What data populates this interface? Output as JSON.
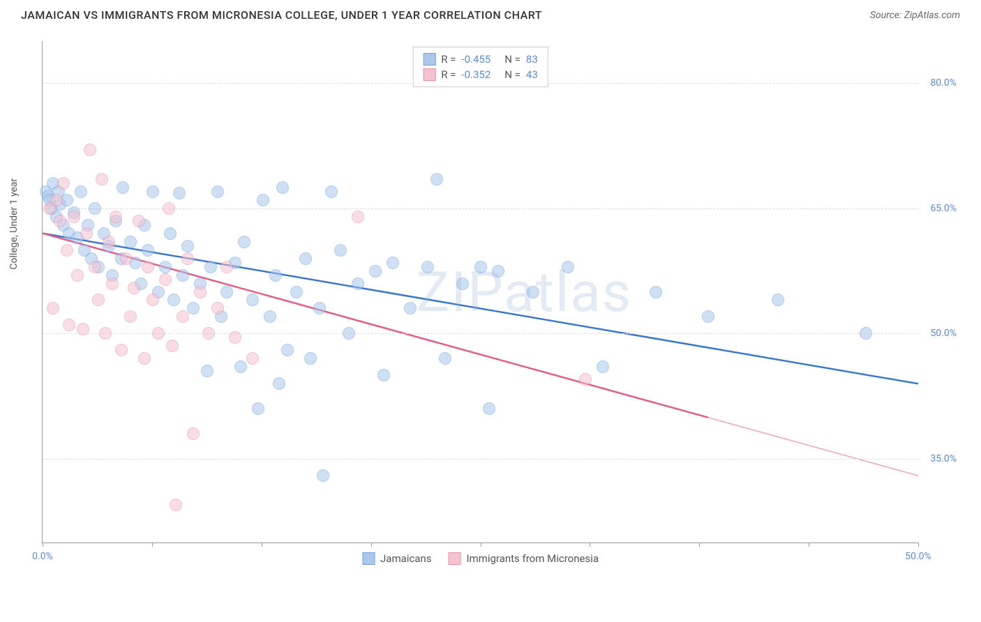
{
  "header": {
    "title": "JAMAICAN VS IMMIGRANTS FROM MICRONESIA COLLEGE, UNDER 1 YEAR CORRELATION CHART",
    "source": "Source: ZipAtlas.com"
  },
  "watermark": "ZIPatlas",
  "chart": {
    "type": "scatter",
    "y_axis_label": "College, Under 1 year",
    "background_color": "#ffffff",
    "grid_color": "#dddddd",
    "axis_color": "#999999",
    "tick_label_color": "#5b8dd6",
    "xlim": [
      0,
      50
    ],
    "ylim": [
      25,
      85
    ],
    "x_ticks": [
      0,
      6.25,
      12.5,
      18.75,
      25,
      31.25,
      37.5,
      43.75,
      50
    ],
    "x_tick_labels": {
      "0": "0.0%",
      "50": "50.0%"
    },
    "y_ticks": [
      35,
      50,
      65,
      80
    ],
    "y_tick_labels": {
      "35": "35.0%",
      "50": "50.0%",
      "65": "65.0%",
      "80": "80.0%"
    },
    "point_radius": 9,
    "point_opacity": 0.55,
    "point_stroke_width": 1.5,
    "line_width": 2.5,
    "series": [
      {
        "name": "Jamaicans",
        "color_fill": "#a9c8ec",
        "color_stroke": "#6fa3dd",
        "line_color": "#3b78c9",
        "R": "-0.455",
        "N": "83",
        "trend": {
          "x1": 0,
          "y1": 62,
          "x2": 50,
          "y2": 44,
          "dashed_from_x": null
        },
        "points": [
          [
            0.2,
            67
          ],
          [
            0.3,
            66.5
          ],
          [
            0.4,
            66
          ],
          [
            0.5,
            65
          ],
          [
            0.6,
            68
          ],
          [
            0.8,
            64
          ],
          [
            0.9,
            67
          ],
          [
            1,
            65.5
          ],
          [
            1.2,
            63
          ],
          [
            1.4,
            66
          ],
          [
            1.5,
            62
          ],
          [
            1.8,
            64.5
          ],
          [
            2,
            61.5
          ],
          [
            2.2,
            67
          ],
          [
            2.4,
            60
          ],
          [
            2.6,
            63
          ],
          [
            2.8,
            59
          ],
          [
            3,
            65
          ],
          [
            3.2,
            58
          ],
          [
            3.5,
            62
          ],
          [
            3.8,
            60.5
          ],
          [
            4,
            57
          ],
          [
            4.2,
            63.5
          ],
          [
            4.5,
            59
          ],
          [
            4.6,
            67.5
          ],
          [
            5,
            61
          ],
          [
            5.3,
            58.5
          ],
          [
            5.6,
            56
          ],
          [
            5.8,
            63
          ],
          [
            6,
            60
          ],
          [
            6.3,
            67
          ],
          [
            6.6,
            55
          ],
          [
            7,
            58
          ],
          [
            7.3,
            62
          ],
          [
            7.5,
            54
          ],
          [
            7.8,
            66.8
          ],
          [
            8,
            57
          ],
          [
            8.3,
            60.5
          ],
          [
            8.6,
            53
          ],
          [
            9,
            56
          ],
          [
            9.4,
            45.5
          ],
          [
            9.6,
            58
          ],
          [
            10,
            67
          ],
          [
            10.2,
            52
          ],
          [
            10.5,
            55
          ],
          [
            11,
            58.5
          ],
          [
            11.3,
            46
          ],
          [
            11.5,
            61
          ],
          [
            12,
            54
          ],
          [
            12.3,
            41
          ],
          [
            12.6,
            66
          ],
          [
            13,
            52
          ],
          [
            13.3,
            57
          ],
          [
            13.5,
            44
          ],
          [
            13.7,
            67.5
          ],
          [
            14,
            48
          ],
          [
            14.5,
            55
          ],
          [
            15,
            59
          ],
          [
            15.3,
            47
          ],
          [
            15.8,
            53
          ],
          [
            16,
            33
          ],
          [
            16.5,
            67
          ],
          [
            17,
            60
          ],
          [
            17.5,
            50
          ],
          [
            18,
            56
          ],
          [
            19,
            57.5
          ],
          [
            19.5,
            45
          ],
          [
            20,
            58.5
          ],
          [
            21,
            53
          ],
          [
            22,
            58
          ],
          [
            22.5,
            68.5
          ],
          [
            23,
            47
          ],
          [
            24,
            56
          ],
          [
            25,
            58
          ],
          [
            25.5,
            41
          ],
          [
            26,
            57.5
          ],
          [
            28,
            55
          ],
          [
            30,
            58
          ],
          [
            32,
            46
          ],
          [
            35,
            55
          ],
          [
            38,
            52
          ],
          [
            42,
            54
          ],
          [
            47,
            50
          ]
        ]
      },
      {
        "name": "Immigrants from Micronesia",
        "color_fill": "#f5c2d0",
        "color_stroke": "#e98fab",
        "line_color": "#e15f86",
        "R": "-0.352",
        "N": "43",
        "trend": {
          "x1": 0,
          "y1": 62,
          "x2": 50,
          "y2": 33,
          "dashed_from_x": 38
        },
        "points": [
          [
            0.4,
            65
          ],
          [
            0.6,
            53
          ],
          [
            0.8,
            66
          ],
          [
            1,
            63.5
          ],
          [
            1.2,
            68
          ],
          [
            1.4,
            60
          ],
          [
            1.5,
            51
          ],
          [
            1.8,
            64
          ],
          [
            2,
            57
          ],
          [
            2.3,
            50.5
          ],
          [
            2.5,
            62
          ],
          [
            2.7,
            72
          ],
          [
            3,
            58
          ],
          [
            3.2,
            54
          ],
          [
            3.4,
            68.5
          ],
          [
            3.6,
            50
          ],
          [
            3.8,
            61
          ],
          [
            4,
            56
          ],
          [
            4.2,
            64
          ],
          [
            4.5,
            48
          ],
          [
            4.8,
            59
          ],
          [
            5,
            52
          ],
          [
            5.2,
            55.5
          ],
          [
            5.5,
            63.5
          ],
          [
            5.8,
            47
          ],
          [
            6,
            58
          ],
          [
            6.3,
            54
          ],
          [
            6.6,
            50
          ],
          [
            7,
            56.5
          ],
          [
            7.2,
            65
          ],
          [
            7.4,
            48.5
          ],
          [
            7.6,
            29.5
          ],
          [
            8,
            52
          ],
          [
            8.3,
            59
          ],
          [
            8.6,
            38
          ],
          [
            9,
            55
          ],
          [
            9.5,
            50
          ],
          [
            10,
            53
          ],
          [
            10.5,
            58
          ],
          [
            11,
            49.5
          ],
          [
            12,
            47
          ],
          [
            18,
            64
          ],
          [
            31,
            44.5
          ]
        ]
      }
    ],
    "legend_bottom": [
      {
        "swatch_fill": "#a9c8ec",
        "swatch_stroke": "#6fa3dd",
        "label": "Jamaicans"
      },
      {
        "swatch_fill": "#f5c2d0",
        "swatch_stroke": "#e98fab",
        "label": "Immigrants from Micronesia"
      }
    ]
  }
}
